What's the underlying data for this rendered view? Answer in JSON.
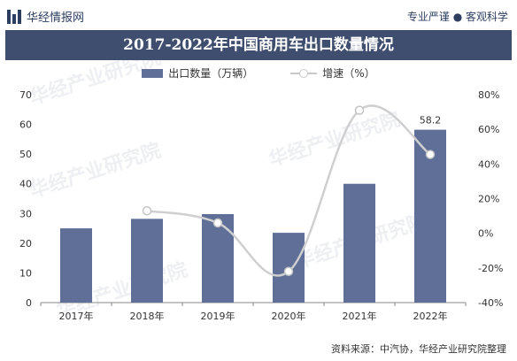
{
  "header": {
    "brand": "华经情报网",
    "slogan": "专业严谨 ● 客观科学"
  },
  "source": "资料来源：中汽协，华经产业研究院整理",
  "watermark": "华经产业研究院",
  "colors": {
    "bar": "#5f6f97",
    "line": "#cfcfcf",
    "title_bg": "#3f4e6e"
  },
  "chart_data": {
    "type": "bar",
    "title": "2017-2022年中国商用车出口数量情况",
    "categories": [
      "2017年",
      "2018年",
      "2019年",
      "2020年",
      "2021年",
      "2022年"
    ],
    "series": [
      {
        "name": "出口数量（万辆）",
        "type": "bar",
        "axis": "left",
        "values": [
          25,
          28.2,
          29.8,
          23.5,
          40,
          58.2
        ]
      },
      {
        "name": "增速（%）",
        "type": "line",
        "axis": "right",
        "values": [
          null,
          13,
          6,
          -22,
          71,
          45.5
        ]
      }
    ],
    "data_labels": [
      {
        "category": "2022年",
        "text": "58.2"
      }
    ],
    "y_left": {
      "min": 0,
      "max": 70,
      "ticks": [
        "0",
        "10",
        "20",
        "30",
        "40",
        "50",
        "60",
        "70"
      ]
    },
    "y_right": {
      "min": -40,
      "max": 80,
      "ticks": [
        "-40%",
        "-20%",
        "0%",
        "20%",
        "40%",
        "60%",
        "80%"
      ]
    },
    "legend_position": "top",
    "grid": false
  }
}
